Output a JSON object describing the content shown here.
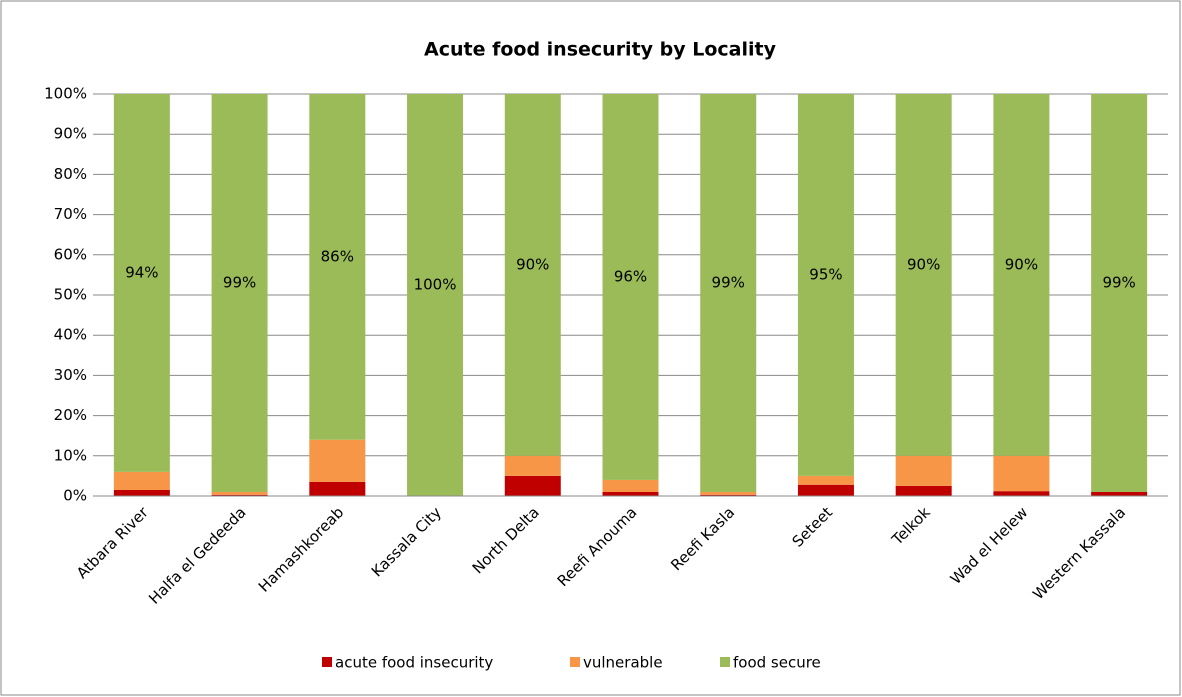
{
  "chart_data": {
    "type": "stacked_bar",
    "title": "Acute food insecurity by Locality",
    "categories": [
      "Atbara River",
      "Halfa el Gedeeda",
      "Hamashkoreab",
      "Kassala City",
      "North Delta",
      "Reefi Anouma",
      "Reefi Kasla",
      "Seteet",
      "Telkok",
      "Wad el Helew",
      "Western Kassala"
    ],
    "series": [
      {
        "name": "acute food insecurity",
        "color": "#c00000",
        "values": [
          1.5,
          0.3,
          3.5,
          0,
          5,
          1,
          0.3,
          2.8,
          2.5,
          1.2,
          1
        ]
      },
      {
        "name": "vulnerable",
        "color": "#f79646",
        "values": [
          4.5,
          0.7,
          10.5,
          0,
          5,
          3,
          0.7,
          2.2,
          7.5,
          8.8,
          0
        ]
      },
      {
        "name": "food secure",
        "color": "#9bbb59",
        "values": [
          94,
          99,
          86,
          100,
          90,
          96,
          99,
          95,
          90,
          90,
          99
        ],
        "value_labels": [
          "94%",
          "99%",
          "86%",
          "100%",
          "90%",
          "96%",
          "99%",
          "95%",
          "90%",
          "90%",
          "99%"
        ]
      }
    ],
    "ylim": [
      0,
      100
    ],
    "yticks": [
      {
        "value": 0,
        "label": "0%"
      },
      {
        "value": 10,
        "label": "10%"
      },
      {
        "value": 20,
        "label": "20%"
      },
      {
        "value": 30,
        "label": "30%"
      },
      {
        "value": 40,
        "label": "40%"
      },
      {
        "value": 50,
        "label": "50%"
      },
      {
        "value": 60,
        "label": "60%"
      },
      {
        "value": 70,
        "label": "70%"
      },
      {
        "value": 80,
        "label": "80%"
      },
      {
        "value": 90,
        "label": "90%"
      },
      {
        "value": 100,
        "label": "100%"
      }
    ],
    "grid": true,
    "legend": "bottom"
  }
}
